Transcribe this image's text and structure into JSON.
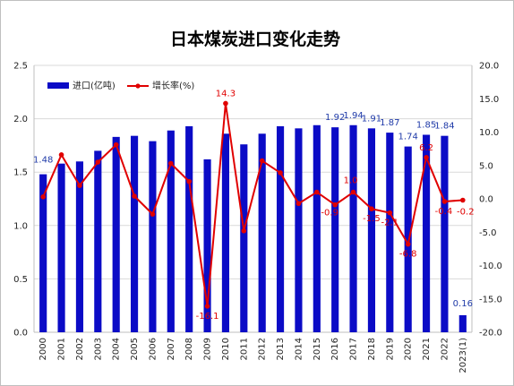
{
  "chart_data": {
    "type": "bar",
    "title": "日本煤炭进口变化走势",
    "categories": [
      "2000",
      "2001",
      "2002",
      "2003",
      "2004",
      "2005",
      "2006",
      "2007",
      "2008",
      "2009",
      "2010",
      "2011",
      "2012",
      "2013",
      "2014",
      "2015",
      "2016",
      "2017",
      "2018",
      "2019",
      "2020",
      "2021",
      "2022",
      "2023(1)"
    ],
    "series": [
      {
        "name": "进口(亿吨)",
        "type": "bar",
        "axis": "left",
        "color": "#0b0bc6",
        "values": [
          1.48,
          1.58,
          1.6,
          1.7,
          1.83,
          1.84,
          1.79,
          1.89,
          1.93,
          1.62,
          1.86,
          1.76,
          1.86,
          1.93,
          1.91,
          1.94,
          1.92,
          1.94,
          1.91,
          1.87,
          1.74,
          1.85,
          1.84,
          0.16
        ],
        "data_labels": {
          "0": "1.48",
          "16": "1.92",
          "17": "1.94",
          "18": "1.91",
          "19": "1.87",
          "20": "1.74",
          "21": "1.85",
          "22": "1.84",
          "23": "0.16"
        }
      },
      {
        "name": "增长率(%)",
        "type": "line",
        "axis": "right",
        "color": "#e00000",
        "values": [
          0.3,
          6.6,
          2.0,
          5.5,
          8.1,
          0.4,
          -2.3,
          5.3,
          2.6,
          -16.1,
          14.3,
          -4.8,
          5.7,
          3.9,
          -0.7,
          1.0,
          -0.9,
          1.0,
          -1.5,
          -2.1,
          -6.8,
          6.2,
          -0.4,
          -0.2
        ],
        "data_labels": {
          "9": "-16.1",
          "10": "14.3",
          "16": "-0.9",
          "17": "1.0",
          "18": "-1.5",
          "19": "-2.1",
          "20": "-6.8",
          "21": "6.2",
          "22": "-0.4",
          "23": "-0.2"
        }
      }
    ],
    "y_left": {
      "min": 0.0,
      "max": 2.5,
      "ticks": [
        "0.0",
        "0.5",
        "1.0",
        "1.5",
        "2.0",
        "2.5"
      ]
    },
    "y_right": {
      "min": -20.0,
      "max": 20.0,
      "ticks": [
        "-20.0",
        "-15.0",
        "-10.0",
        "-5.0",
        "0.0",
        "5.0",
        "10.0",
        "15.0",
        "20.0"
      ]
    },
    "grid": true,
    "legend_position": "top-left"
  }
}
